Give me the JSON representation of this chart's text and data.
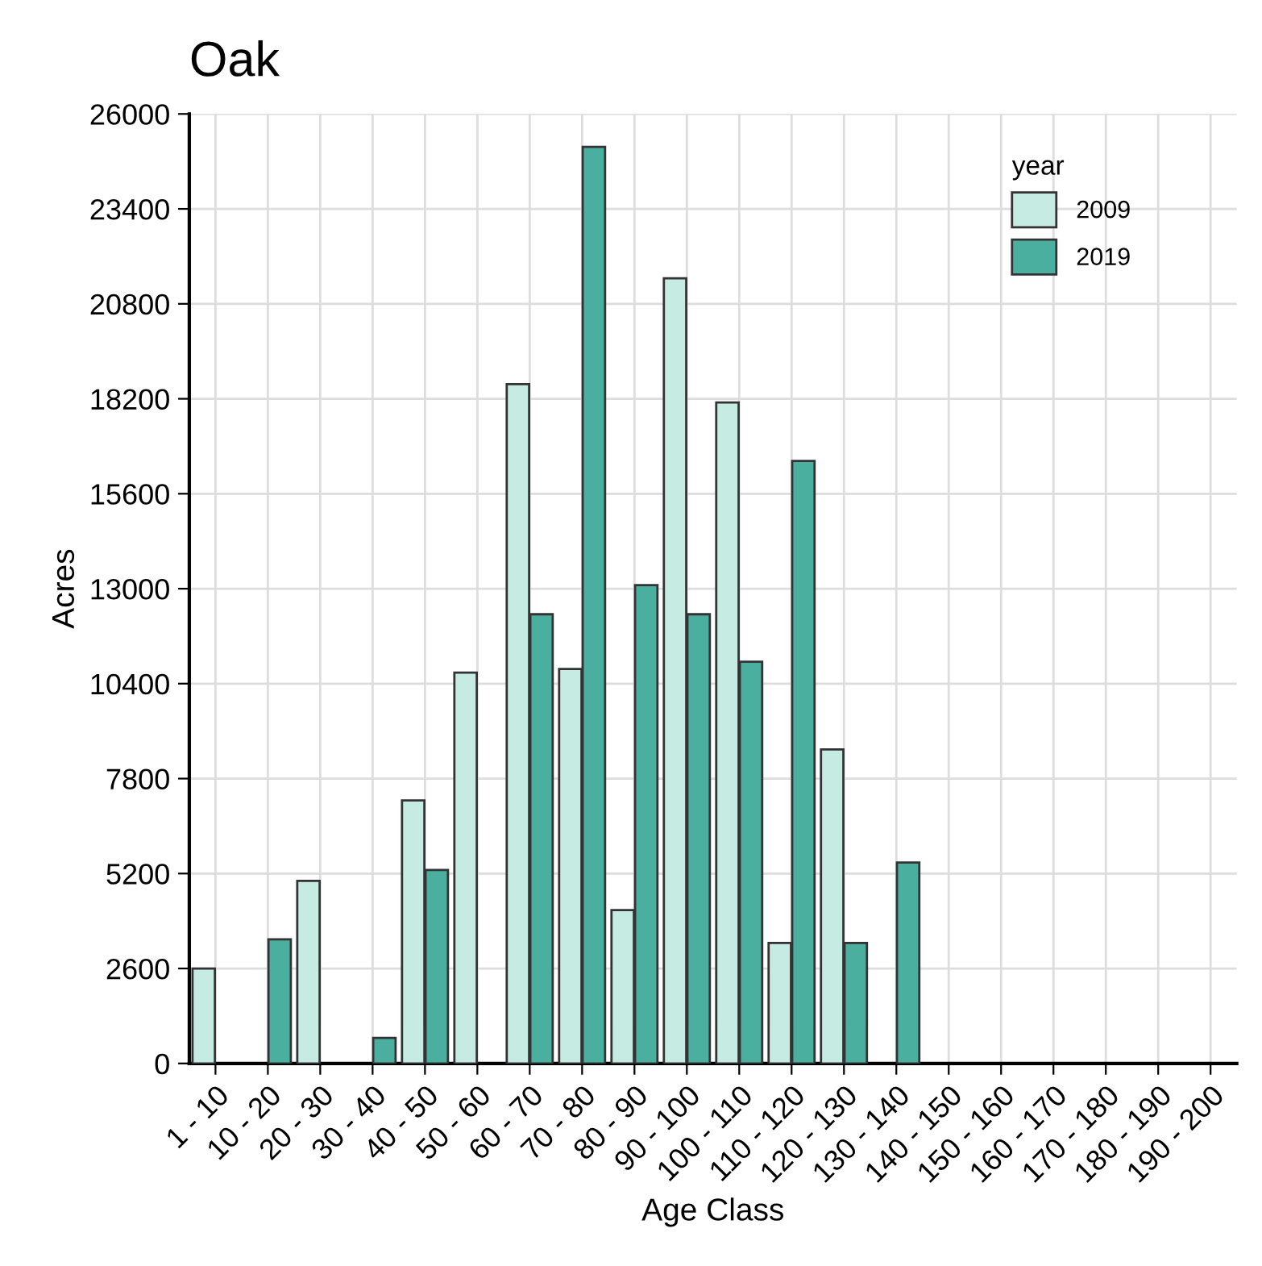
{
  "chart_data": {
    "type": "bar",
    "title": "Oak",
    "xlabel": "Age Class",
    "ylabel": "Acres",
    "legend_title": "year",
    "categories": [
      "1 - 10",
      "10 - 20",
      "20 - 30",
      "30 - 40",
      "40 - 50",
      "50 - 60",
      "60 - 70",
      "70 - 80",
      "80 - 90",
      "90 - 100",
      "100 - 110",
      "110 - 120",
      "120 - 130",
      "130 - 140",
      "140 - 150",
      "150 - 160",
      "160 - 170",
      "170 - 180",
      "180 - 190",
      "190 - 200"
    ],
    "series": [
      {
        "name": "2009",
        "color": "#c5ebe3",
        "values": [
          2600,
          null,
          5000,
          null,
          7200,
          10700,
          18600,
          10800,
          4200,
          21500,
          18100,
          3300,
          8600,
          null,
          null,
          null,
          null,
          null,
          null,
          null
        ]
      },
      {
        "name": "2019",
        "color": "#4aaf9f",
        "values": [
          null,
          3400,
          null,
          700,
          5300,
          null,
          12300,
          25100,
          13100,
          12300,
          11000,
          16500,
          3300,
          5500,
          null,
          null,
          null,
          null,
          null,
          null
        ]
      }
    ],
    "ylim": [
      0,
      26000
    ],
    "yticks": [
      0,
      2600,
      5200,
      7800,
      10400,
      13000,
      15600,
      18200,
      20800,
      23400,
      26000
    ],
    "grid": true,
    "legend": "top right"
  }
}
